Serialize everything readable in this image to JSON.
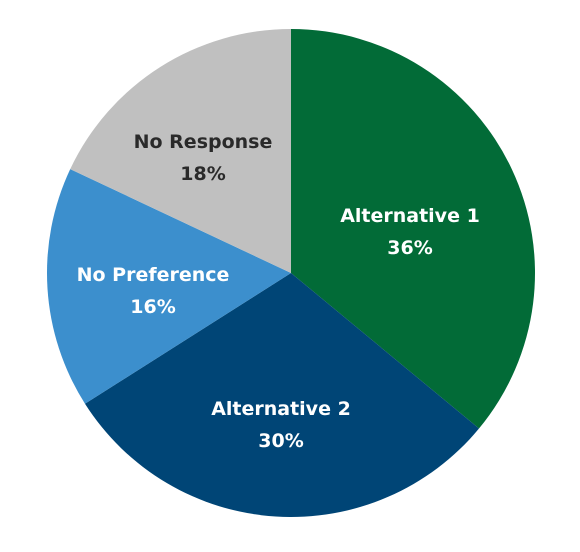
{
  "chart_data": {
    "type": "pie",
    "slices": [
      {
        "label": "Alternative 1",
        "value": 36,
        "value_label": "36%",
        "color": "#026b37",
        "text_color": "#ffffff"
      },
      {
        "label": "Alternative 2",
        "value": 30,
        "value_label": "30%",
        "color": "#004576",
        "text_color": "#ffffff"
      },
      {
        "label": "No Preference",
        "value": 16,
        "value_label": "16%",
        "color": "#3c8fcd",
        "text_color": "#ffffff"
      },
      {
        "label": "No Response",
        "value": 18,
        "value_label": "18%",
        "color": "#c0c0c0",
        "text_color": "#2a2a2a"
      }
    ],
    "start_angle": "12 o'clock",
    "direction": "clockwise",
    "legend": "none",
    "labels": "inside slices"
  }
}
